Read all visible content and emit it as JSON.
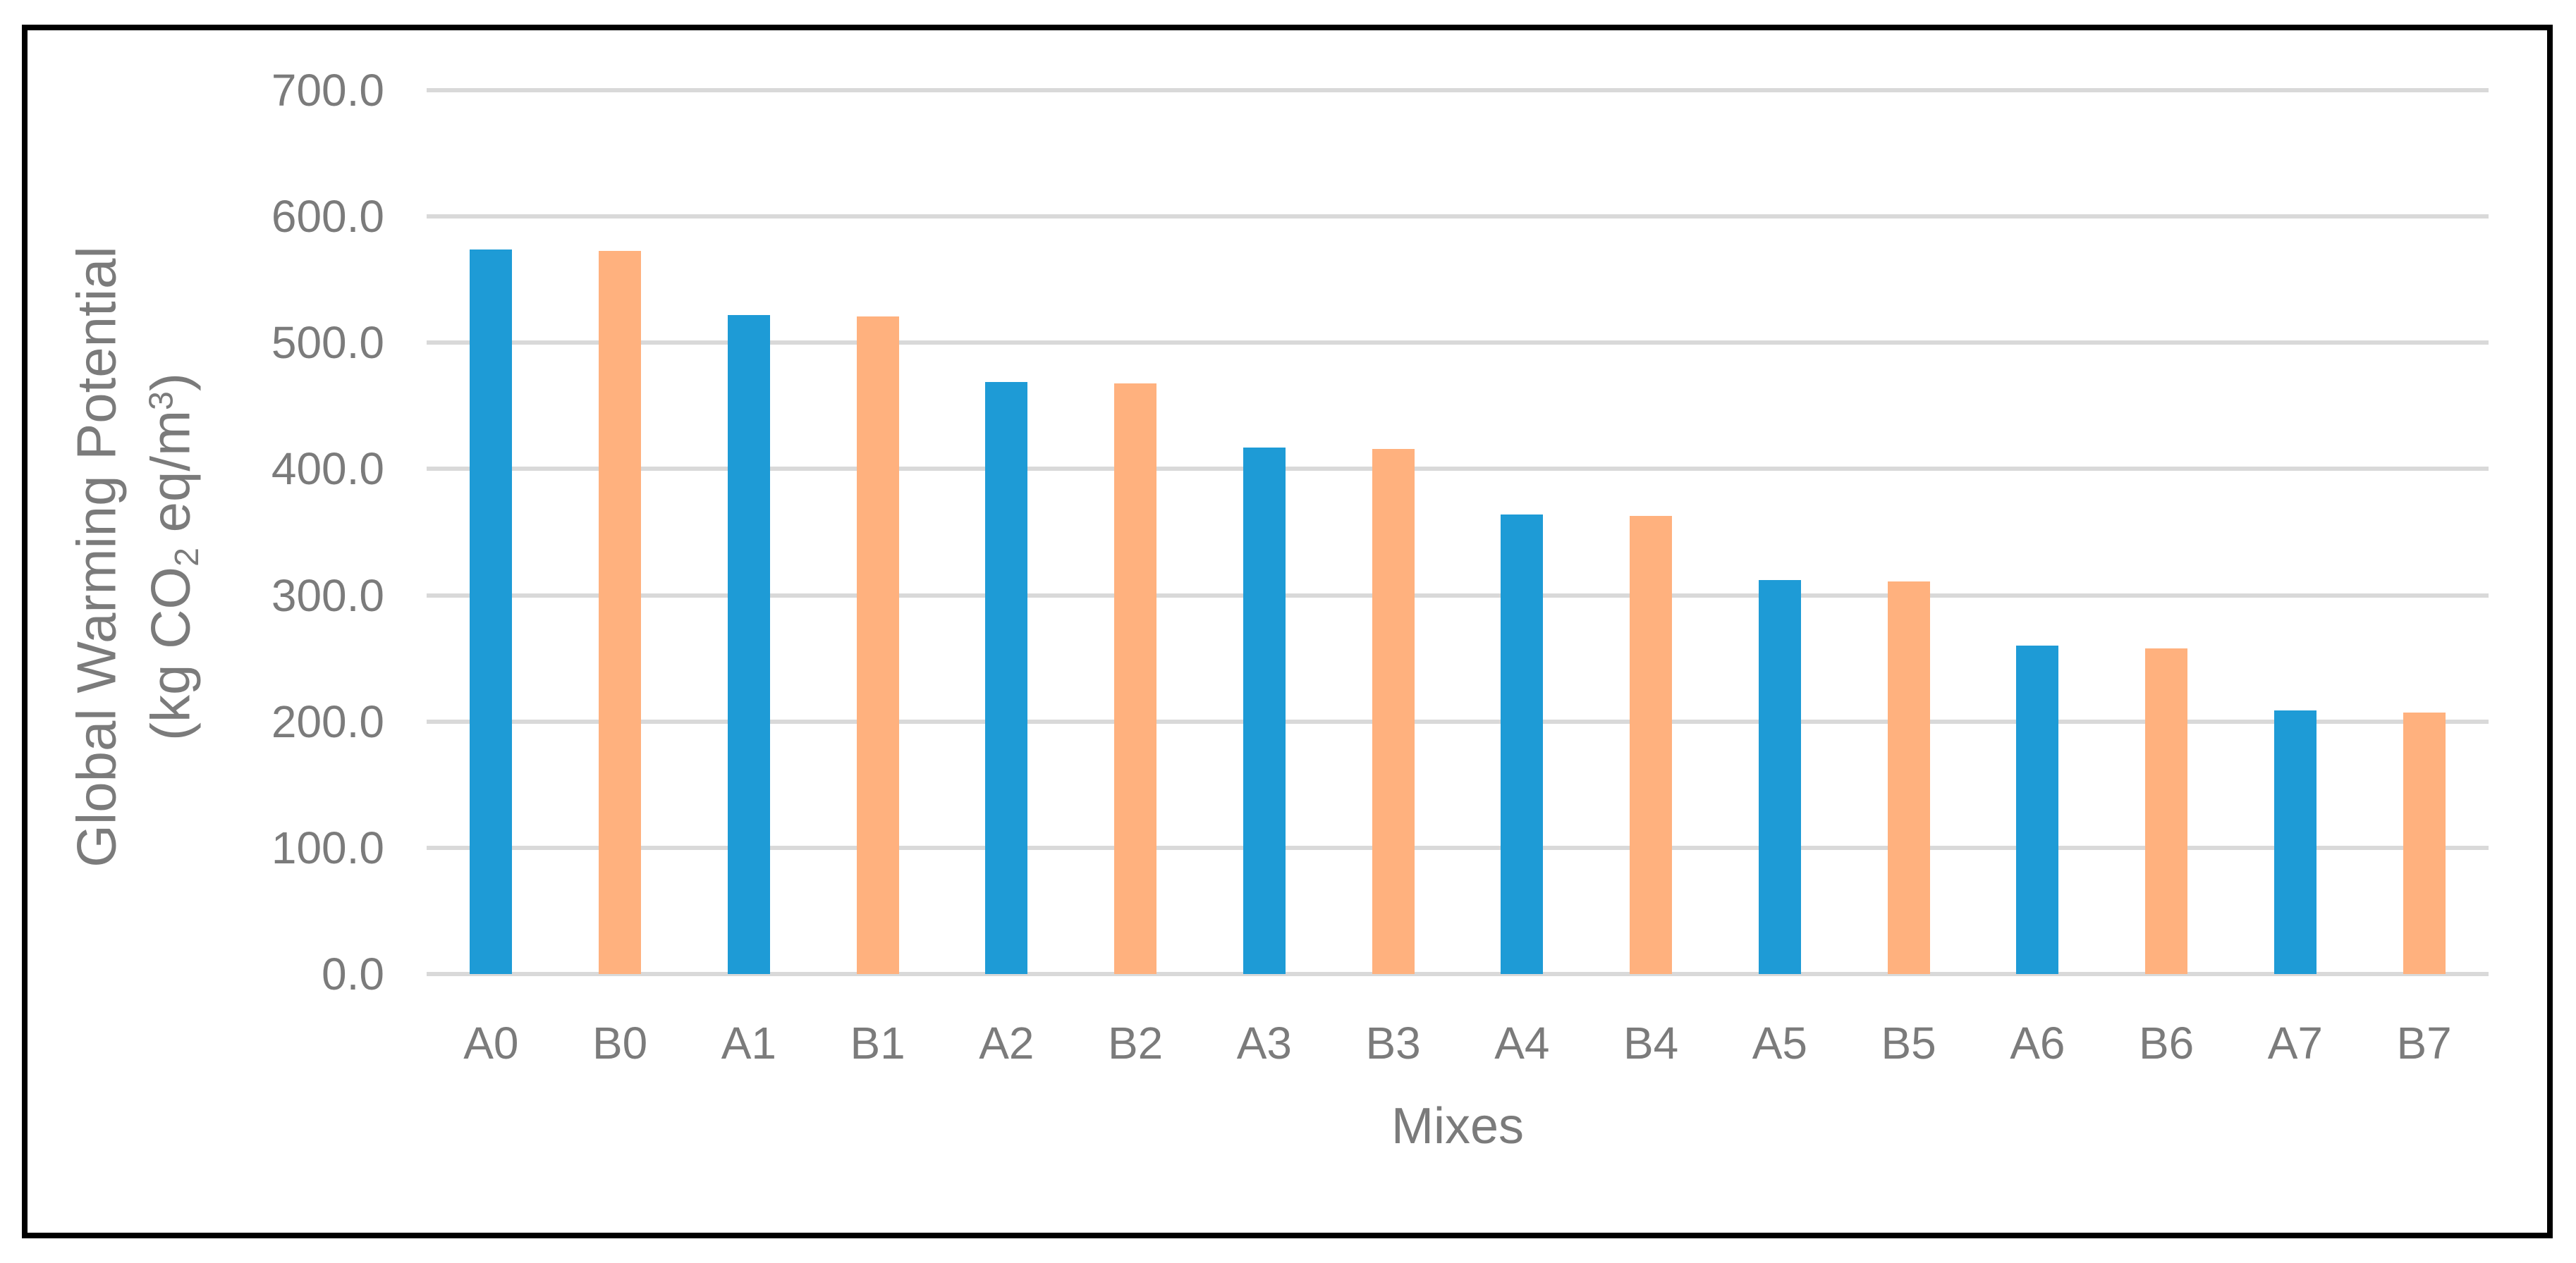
{
  "figure": {
    "background_color": "#FFFFFF",
    "border_color": "#000000",
    "text_color": "#7B7B7B",
    "gridline_color": "#D9D9D9",
    "axis_line_color": "#D9D9D9"
  },
  "chart_data": {
    "type": "bar",
    "title": "",
    "xlabel": "Mixes",
    "ylabel": "Global Warming Potential (kg CO₂ eq/m³)",
    "ylabel_line1": "Global Warming Potential",
    "ylabel_line2_parts": {
      "open": "(kg CO",
      "sub": "2",
      "mid": " eq/m",
      "sup": "3",
      "close": ")"
    },
    "categories": [
      "A0",
      "B0",
      "A1",
      "B1",
      "A2",
      "B2",
      "A3",
      "B3",
      "A4",
      "B4",
      "A5",
      "B5",
      "A6",
      "B6",
      "A7",
      "B7"
    ],
    "values": [
      574,
      573,
      522,
      521,
      469,
      468,
      417,
      416,
      364,
      363,
      312,
      311,
      260,
      258,
      209,
      207
    ],
    "series_colors": {
      "A_mixes": "#1E9BD6",
      "B_mixes": "#FFB17E"
    },
    "ylim": [
      0,
      700
    ],
    "y_tick_step": 100,
    "y_tick_labels": [
      "700.0",
      "600.0",
      "500.0",
      "400.0",
      "300.0",
      "200.0",
      "100.0",
      "0.0"
    ],
    "grid": true,
    "legend": "none"
  }
}
